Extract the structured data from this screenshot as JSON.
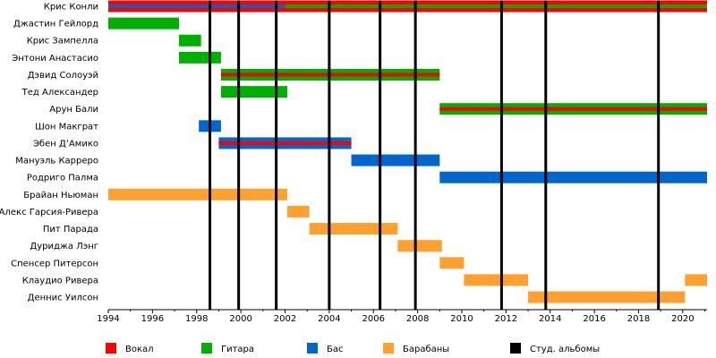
{
  "chart_data": {
    "type": "timeline",
    "xlim": [
      1994,
      2021.1
    ],
    "ticks": [
      1994,
      1996,
      1998,
      2000,
      2002,
      2004,
      2006,
      2008,
      2010,
      2012,
      2014,
      2016,
      2018,
      2020
    ],
    "tick_labels": [
      "1994",
      "1996",
      "1998",
      "2000",
      "2002",
      "2004",
      "2006",
      "2008",
      "2010",
      "2012",
      "2014",
      "2016",
      "2018",
      "2020"
    ],
    "albums": [
      1998.6,
      1999.9,
      2001.6,
      2004.0,
      2006.3,
      2007.9,
      2011.8,
      2013.8,
      2018.9
    ],
    "colors": {
      "vocals": "#ff0000",
      "guitar": "#00b000",
      "bass": "#0066cc",
      "drums": "#ffa030",
      "albums": "#000000"
    },
    "legend": [
      {
        "key": "vocals",
        "label": "Вокал"
      },
      {
        "key": "guitar",
        "label": "Гитара"
      },
      {
        "key": "bass",
        "label": "Бас"
      },
      {
        "key": "drums",
        "label": "Барабаны"
      },
      {
        "key": "albums",
        "label": "Студ. альбомы"
      }
    ],
    "members": [
      {
        "name": "Крис Конли",
        "bars": [
          {
            "start": 1994,
            "end": 2002,
            "color": "vocals",
            "inner": "bass"
          },
          {
            "start": 2002,
            "end": 2021.1,
            "color": "vocals",
            "inner": "guitar"
          }
        ]
      },
      {
        "name": "Джастин Гейлорд",
        "bars": [
          {
            "start": 1994,
            "end": 1997.2,
            "color": "guitar"
          }
        ]
      },
      {
        "name": "Крис Зампелла",
        "bars": [
          {
            "start": 1997.2,
            "end": 1998.2,
            "color": "guitar"
          }
        ]
      },
      {
        "name": "Энтони Анастасио",
        "bars": [
          {
            "start": 1997.2,
            "end": 1999.1,
            "color": "guitar"
          }
        ]
      },
      {
        "name": "Дэвид Солоуэй",
        "bars": [
          {
            "start": 1999.1,
            "end": 2009,
            "color": "guitar",
            "inner": "vocals"
          }
        ]
      },
      {
        "name": "Тед Александер",
        "bars": [
          {
            "start": 1999.1,
            "end": 2002.1,
            "color": "guitar"
          }
        ]
      },
      {
        "name": "Арун Бали",
        "bars": [
          {
            "start": 2009,
            "end": 2021.1,
            "color": "guitar",
            "inner": "vocals"
          }
        ]
      },
      {
        "name": "Шон Макграт",
        "bars": [
          {
            "start": 1998.1,
            "end": 1999.1,
            "color": "bass"
          }
        ]
      },
      {
        "name": "Эбен Д’Амико",
        "bars": [
          {
            "start": 1999,
            "end": 2005,
            "color": "bass",
            "inner": "vocals"
          }
        ]
      },
      {
        "name": "Мануэль Карреро",
        "bars": [
          {
            "start": 2005,
            "end": 2009,
            "color": "bass"
          }
        ]
      },
      {
        "name": "Родриго Палма",
        "bars": [
          {
            "start": 2009,
            "end": 2021.1,
            "color": "bass"
          }
        ]
      },
      {
        "name": "Брайан Ньюман",
        "bars": [
          {
            "start": 1994,
            "end": 2002.1,
            "color": "drums"
          }
        ]
      },
      {
        "name": "Алекс Гарсия-Ривера",
        "bars": [
          {
            "start": 2002.1,
            "end": 2003.1,
            "color": "drums"
          }
        ]
      },
      {
        "name": "Пит Парада",
        "bars": [
          {
            "start": 2003.1,
            "end": 2007.1,
            "color": "drums"
          }
        ]
      },
      {
        "name": "Дуриджа Лэнг",
        "bars": [
          {
            "start": 2007.1,
            "end": 2009.1,
            "color": "drums"
          }
        ]
      },
      {
        "name": "Спенсер Питерсон",
        "bars": [
          {
            "start": 2009,
            "end": 2010.1,
            "color": "drums"
          }
        ]
      },
      {
        "name": "Клаудио Ривера",
        "bars": [
          {
            "start": 2010.1,
            "end": 2013,
            "color": "drums"
          },
          {
            "start": 2020.1,
            "end": 2021.1,
            "color": "drums"
          }
        ]
      },
      {
        "name": "Деннис Уилсон",
        "bars": [
          {
            "start": 2013,
            "end": 2020.1,
            "color": "drums"
          }
        ]
      }
    ]
  }
}
